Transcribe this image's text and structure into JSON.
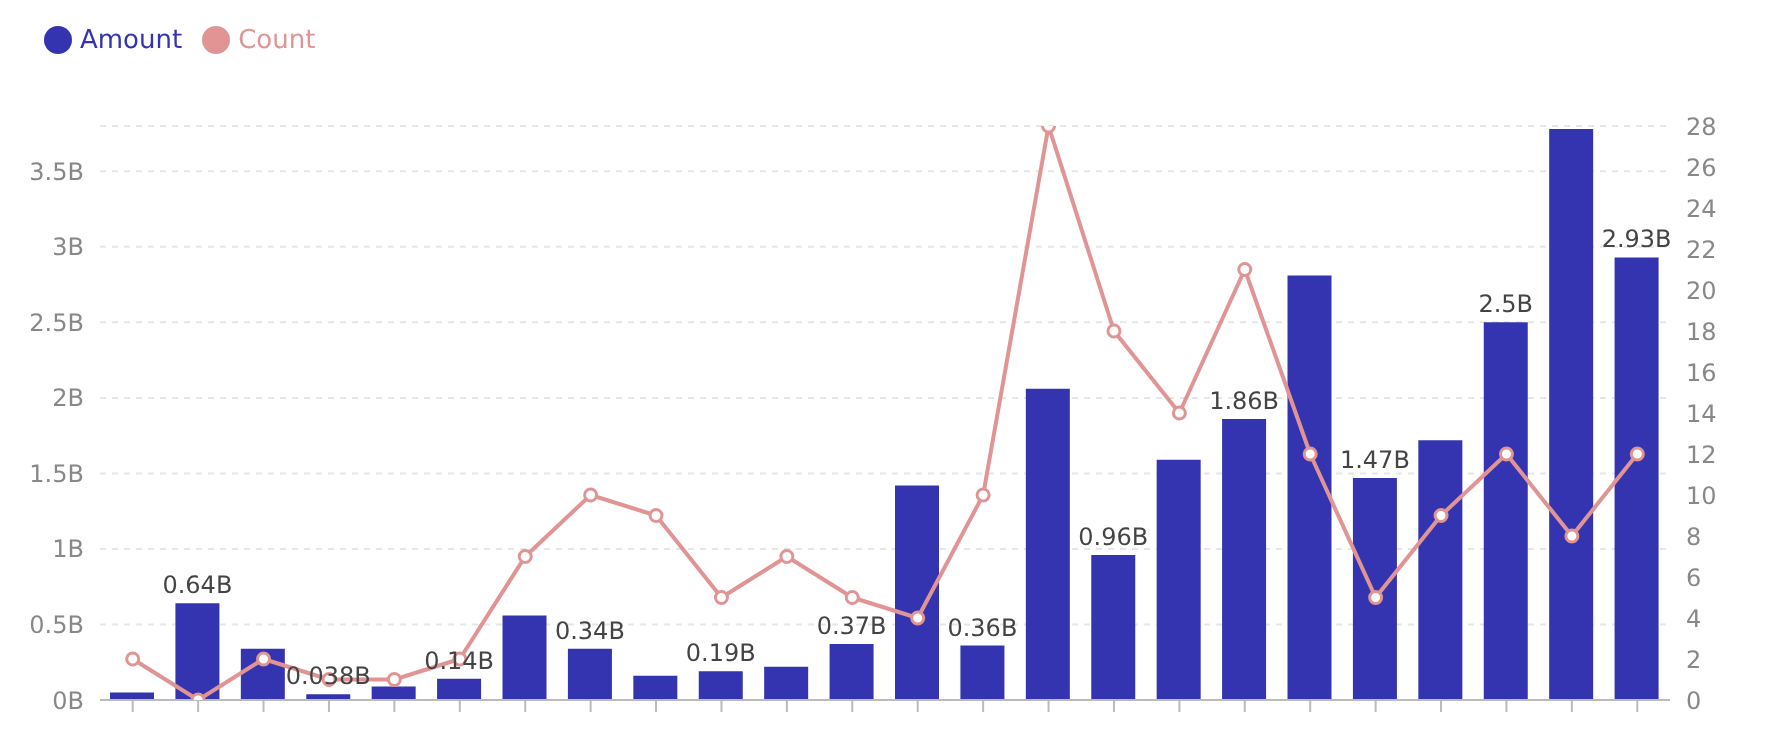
{
  "chart_data": {
    "type": "bar",
    "categories": [
      null,
      null,
      null,
      null,
      null,
      null,
      null,
      null,
      null,
      null,
      null,
      null,
      null,
      null,
      null,
      null,
      null,
      null,
      null,
      null,
      null,
      null,
      null,
      null
    ],
    "series": [
      {
        "name": "Amount",
        "color": "#3434b0",
        "values": [
          0.05,
          0.64,
          0.34,
          0.038,
          0.09,
          0.14,
          0.56,
          0.34,
          0.16,
          0.19,
          0.22,
          0.37,
          1.42,
          0.36,
          2.06,
          0.96,
          1.59,
          1.86,
          2.81,
          1.47,
          1.72,
          2.5,
          3.78,
          2.93
        ],
        "value_labels": [
          null,
          "0.64B",
          null,
          "0.038B",
          null,
          "0.14B",
          null,
          "0.34B",
          null,
          "0.19B",
          null,
          "0.37B",
          null,
          "0.36B",
          null,
          "0.96B",
          null,
          "1.86B",
          null,
          "1.47B",
          null,
          "2.5B",
          null,
          "2.93B"
        ]
      },
      {
        "name": "Count",
        "type": "line",
        "axis": "y2",
        "color": "#e09494",
        "marker": "circle",
        "values": [
          2,
          0,
          2,
          1,
          1,
          2,
          7,
          10,
          9,
          5,
          7,
          5,
          4,
          10,
          28,
          18,
          14,
          21,
          12,
          5,
          9,
          12,
          8,
          12
        ]
      }
    ],
    "ylim": [
      0,
      3.8
    ],
    "yticks": [
      {
        "value": 0,
        "label": "0B"
      },
      {
        "value": 0.5,
        "label": "0.5B"
      },
      {
        "value": 1,
        "label": "1B"
      },
      {
        "value": 1.5,
        "label": "1.5B"
      },
      {
        "value": 2,
        "label": "2B"
      },
      {
        "value": 2.5,
        "label": "2.5B"
      },
      {
        "value": 3,
        "label": "3B"
      },
      {
        "value": 3.5,
        "label": "3.5B"
      }
    ],
    "y2lim": [
      0,
      28
    ],
    "y2ticks": [
      0,
      2,
      4,
      6,
      8,
      10,
      12,
      14,
      16,
      18,
      20,
      22,
      24,
      26,
      28
    ],
    "grid": "y",
    "legend": "top left"
  }
}
